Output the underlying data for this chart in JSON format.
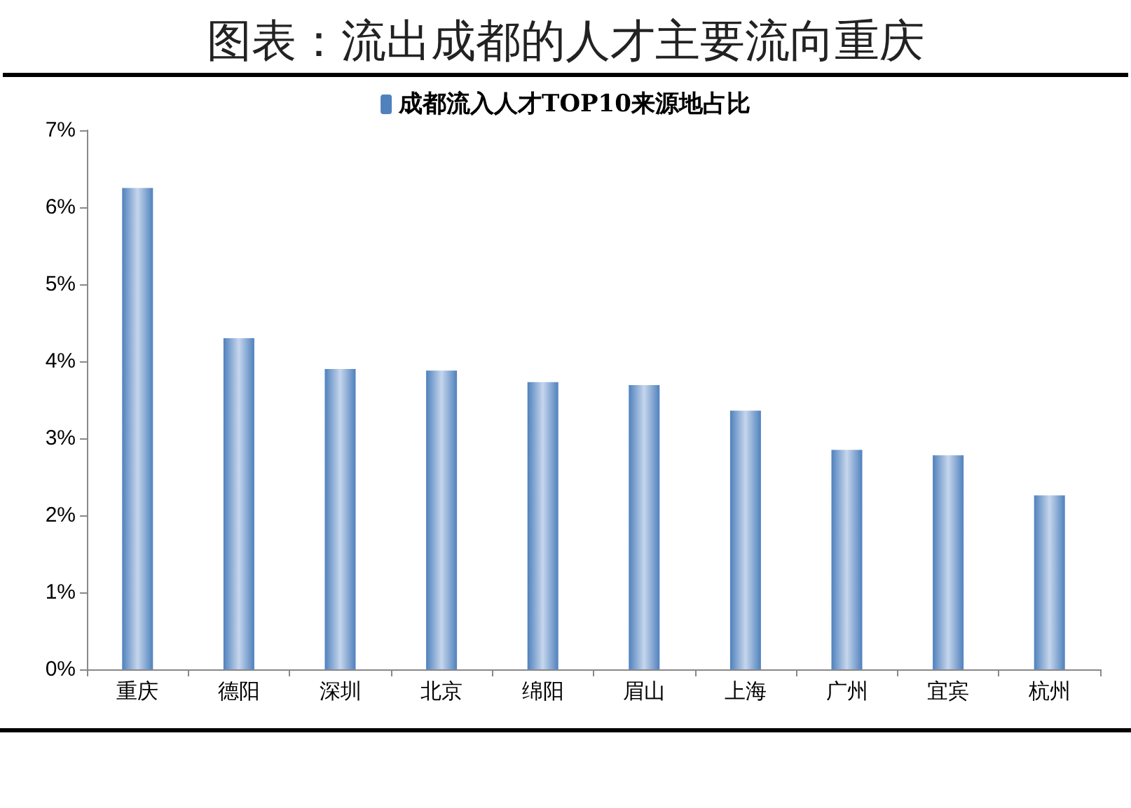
{
  "chart_data": {
    "type": "bar",
    "title": "图表：流出成都的人才主要流向重庆",
    "categories": [
      "重庆",
      "德阳",
      "深圳",
      "北京",
      "绵阳",
      "眉山",
      "上海",
      "广州",
      "宜宾",
      "杭州"
    ],
    "series": [
      {
        "name": "成都流入人才TOP10来源地占比",
        "color": "#4f81bd",
        "values": [
          6.25,
          4.3,
          3.9,
          3.88,
          3.73,
          3.69,
          3.36,
          2.85,
          2.78,
          2.26
        ]
      }
    ],
    "ylim": [
      0,
      7
    ],
    "yticks": [
      {
        "value": 0,
        "label": "0%"
      },
      {
        "value": 1,
        "label": "1%"
      },
      {
        "value": 2,
        "label": "2%"
      },
      {
        "value": 3,
        "label": "3%"
      },
      {
        "value": 4,
        "label": "4%"
      },
      {
        "value": 5,
        "label": "5%"
      },
      {
        "value": 6,
        "label": "6%"
      },
      {
        "value": 7,
        "label": "7%"
      }
    ],
    "grid": false,
    "legend": "top"
  }
}
